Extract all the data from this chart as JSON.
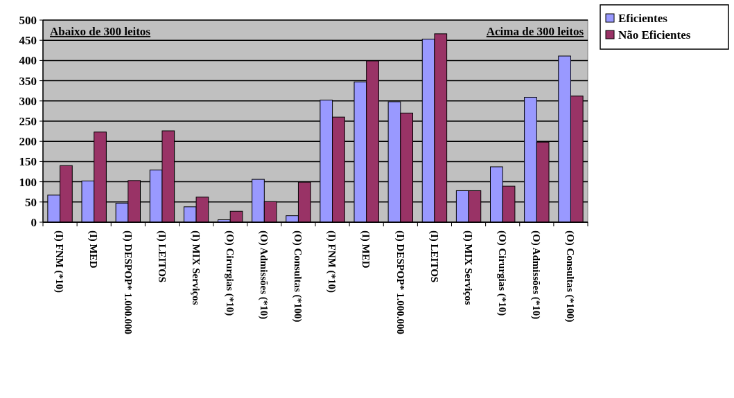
{
  "chart_data": {
    "type": "bar",
    "categories": [
      "(I) FNM (*10)",
      "(I) MED",
      "(I) DESPOP* 1.000.000",
      "(I) LEITOS",
      "(I) MIX Serviços",
      "(O) Cirurgias (*10)",
      "(O) Admissões (*10)",
      "(O) Consultas (*100)",
      "(I) FNM (*10)",
      "(I) MED",
      "(I) DESPOP* 1.000.000",
      "(I) LEITOS",
      "(I) MIX Serviços",
      "(O) Cirurgias (*10)",
      "(O) Admissões (*10)",
      "(O) Consultas (*100)"
    ],
    "series": [
      {
        "name": "Eficientes",
        "color": "#9999ff",
        "values": [
          67,
          102,
          47,
          129,
          38,
          6,
          106,
          16,
          302,
          347,
          298,
          453,
          78,
          137,
          309,
          411
        ]
      },
      {
        "name": "Não Eficientes",
        "color": "#993366",
        "values": [
          140,
          223,
          103,
          226,
          62,
          27,
          51,
          99,
          260,
          399,
          270,
          466,
          78,
          89,
          198,
          312
        ]
      }
    ],
    "ylim": [
      0,
      500
    ],
    "yticks": [
      0,
      50,
      100,
      150,
      200,
      250,
      300,
      350,
      400,
      450,
      500
    ],
    "grid": "y",
    "legend": "right",
    "annotations": [
      "Abaixo de 300 leitos",
      "Acima de 300 leitos"
    ]
  }
}
